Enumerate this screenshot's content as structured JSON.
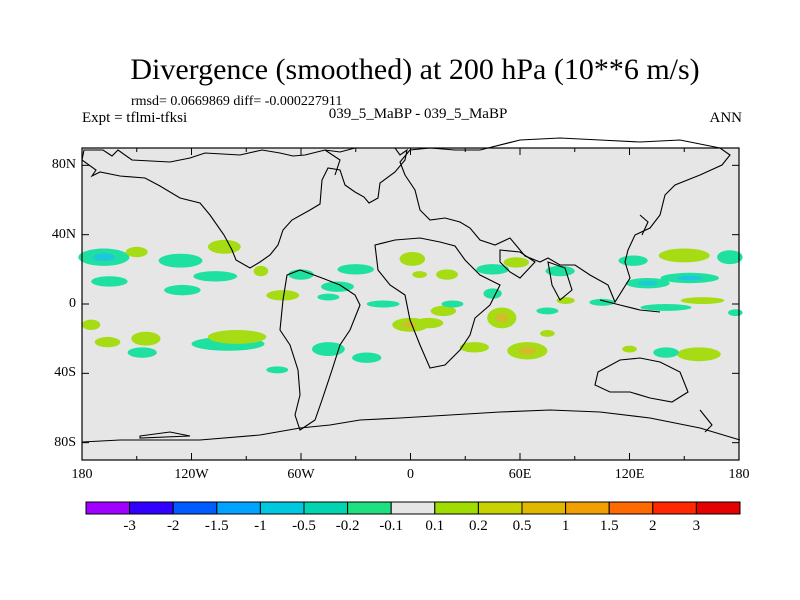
{
  "title": "Divergence (smoothed) at 200 hPa (10**6 m/s)",
  "stats": "rmsd= 0.0669869 diff= -0.000227911",
  "expt": "Expt = tflmi-tfksi",
  "center_label": "039_5_MaBP - 039_5_MaBP",
  "season": "ANN",
  "map": {
    "lat_range": [
      -90,
      90
    ],
    "lon_range": [
      -180,
      180
    ],
    "y_ticks": [
      {
        "label": "80N",
        "lat": 80
      },
      {
        "label": "40N",
        "lat": 40
      },
      {
        "label": "0",
        "lat": 0
      },
      {
        "label": "40S",
        "lat": -40
      },
      {
        "label": "80S",
        "lat": -80
      }
    ],
    "x_ticks": [
      {
        "label": "180",
        "lon": -180
      },
      {
        "label": "120W",
        "lon": -120
      },
      {
        "label": "60W",
        "lon": -60
      },
      {
        "label": "0",
        "lon": 0
      },
      {
        "label": "60E",
        "lon": 60
      },
      {
        "label": "120E",
        "lon": 120
      },
      {
        "label": "180",
        "lon": 180
      }
    ],
    "background_color": "#e6e6e6",
    "positive_color": "#a6dc14",
    "positive_strong_color": "#d2bc2a",
    "negative_color": "#1ee0a0",
    "negative_strong_color": "#1ec8dc",
    "blobs": [
      {
        "sign": "neg",
        "lon": -168,
        "lat": 27,
        "rlon": 14,
        "rlat": 5,
        "strong": true
      },
      {
        "sign": "pos",
        "lon": -150,
        "lat": 30,
        "rlon": 6,
        "rlat": 3
      },
      {
        "sign": "neg",
        "lon": -126,
        "lat": 25,
        "rlon": 12,
        "rlat": 4
      },
      {
        "sign": "pos",
        "lon": -102,
        "lat": 33,
        "rlon": 9,
        "rlat": 4
      },
      {
        "sign": "neg",
        "lon": -107,
        "lat": 16,
        "rlon": 12,
        "rlat": 3
      },
      {
        "sign": "neg",
        "lon": -165,
        "lat": 13,
        "rlon": 10,
        "rlat": 3
      },
      {
        "sign": "neg",
        "lon": -125,
        "lat": 8,
        "rlon": 10,
        "rlat": 3
      },
      {
        "sign": "pos",
        "lon": -82,
        "lat": 19,
        "rlon": 4,
        "rlat": 3
      },
      {
        "sign": "neg",
        "lon": -60,
        "lat": 17,
        "rlon": 7,
        "rlat": 3
      },
      {
        "sign": "neg",
        "lon": -30,
        "lat": 20,
        "rlon": 10,
        "rlat": 3
      },
      {
        "sign": "neg",
        "lon": -40,
        "lat": 10,
        "rlon": 9,
        "rlat": 3
      },
      {
        "sign": "pos",
        "lon": -70,
        "lat": 5,
        "rlon": 9,
        "rlat": 3
      },
      {
        "sign": "neg",
        "lon": -45,
        "lat": 4,
        "rlon": 6,
        "rlat": 2
      },
      {
        "sign": "pos",
        "lon": 1,
        "lat": 26,
        "rlon": 7,
        "rlat": 4
      },
      {
        "sign": "neg",
        "lon": 45,
        "lat": 20,
        "rlon": 9,
        "rlat": 3
      },
      {
        "sign": "pos",
        "lon": 20,
        "lat": 17,
        "rlon": 6,
        "rlat": 3
      },
      {
        "sign": "pos",
        "lon": 5,
        "lat": 17,
        "rlon": 4,
        "rlat": 2
      },
      {
        "sign": "pos",
        "lon": 58,
        "lat": 24,
        "rlon": 7,
        "rlat": 3
      },
      {
        "sign": "neg",
        "lon": 82,
        "lat": 19,
        "rlon": 8,
        "rlat": 3
      },
      {
        "sign": "neg",
        "lon": 130,
        "lat": 12,
        "rlon": 12,
        "rlat": 3,
        "strong": true
      },
      {
        "sign": "neg",
        "lon": 153,
        "lat": 15,
        "rlon": 16,
        "rlat": 3,
        "strong": true
      },
      {
        "sign": "pos",
        "lon": 150,
        "lat": 28,
        "rlon": 14,
        "rlat": 4
      },
      {
        "sign": "neg",
        "lon": 122,
        "lat": 25,
        "rlon": 8,
        "rlat": 3
      },
      {
        "sign": "neg",
        "lon": 175,
        "lat": 27,
        "rlon": 7,
        "rlat": 4
      },
      {
        "sign": "neg",
        "lon": -100,
        "lat": -23,
        "rlon": 20,
        "rlat": 4
      },
      {
        "sign": "pos",
        "lon": -95,
        "lat": -19,
        "rlon": 16,
        "rlat": 4
      },
      {
        "sign": "pos",
        "lon": -145,
        "lat": -20,
        "rlon": 8,
        "rlat": 4
      },
      {
        "sign": "pos",
        "lon": -166,
        "lat": -22,
        "rlon": 7,
        "rlat": 3
      },
      {
        "sign": "neg",
        "lon": -147,
        "lat": -28,
        "rlon": 8,
        "rlat": 3
      },
      {
        "sign": "neg",
        "lon": -45,
        "lat": -26,
        "rlon": 9,
        "rlat": 4
      },
      {
        "sign": "neg",
        "lon": -24,
        "lat": -31,
        "rlon": 8,
        "rlat": 3
      },
      {
        "sign": "pos",
        "lon": -175,
        "lat": -12,
        "rlon": 5,
        "rlat": 3
      },
      {
        "sign": "neg",
        "lon": -15,
        "lat": 0,
        "rlon": 9,
        "rlat": 2
      },
      {
        "sign": "pos",
        "lon": 0,
        "lat": -12,
        "rlon": 10,
        "rlat": 4,
        "strong": true
      },
      {
        "sign": "pos",
        "lon": 10,
        "lat": -11,
        "rlon": 8,
        "rlat": 3
      },
      {
        "sign": "pos",
        "lon": 18,
        "lat": -4,
        "rlon": 7,
        "rlat": 3
      },
      {
        "sign": "neg",
        "lon": 23,
        "lat": 0,
        "rlon": 6,
        "rlat": 2
      },
      {
        "sign": "pos",
        "lon": 50,
        "lat": -8,
        "rlon": 8,
        "rlat": 6,
        "strong": true
      },
      {
        "sign": "neg",
        "lon": 45,
        "lat": 6,
        "rlon": 5,
        "rlat": 3
      },
      {
        "sign": "neg",
        "lon": 75,
        "lat": -4,
        "rlon": 6,
        "rlat": 2
      },
      {
        "sign": "pos",
        "lon": 85,
        "lat": 2,
        "rlon": 5,
        "rlat": 2
      },
      {
        "sign": "neg",
        "lon": 105,
        "lat": 1,
        "rlon": 7,
        "rlat": 2
      },
      {
        "sign": "neg",
        "lon": 140,
        "lat": -2,
        "rlon": 14,
        "rlat": 2
      },
      {
        "sign": "pos",
        "lon": 160,
        "lat": 2,
        "rlon": 12,
        "rlat": 2
      },
      {
        "sign": "pos",
        "lon": 64,
        "lat": -27,
        "rlon": 11,
        "rlat": 5,
        "strong": true
      },
      {
        "sign": "pos",
        "lon": 35,
        "lat": -25,
        "rlon": 8,
        "rlat": 3
      },
      {
        "sign": "pos",
        "lon": 158,
        "lat": -29,
        "rlon": 12,
        "rlat": 4
      },
      {
        "sign": "neg",
        "lon": 140,
        "lat": -28,
        "rlon": 7,
        "rlat": 3
      },
      {
        "sign": "pos",
        "lon": 120,
        "lat": -26,
        "rlon": 4,
        "rlat": 2
      },
      {
        "sign": "pos",
        "lon": 75,
        "lat": -17,
        "rlon": 4,
        "rlat": 2
      },
      {
        "sign": "neg",
        "lon": -73,
        "lat": -38,
        "rlon": 6,
        "rlat": 2
      },
      {
        "sign": "neg",
        "lon": 178,
        "lat": -5,
        "rlon": 4,
        "rlat": 2
      }
    ]
  },
  "colorbar": {
    "colors": [
      "#9f00ff",
      "#3200ff",
      "#005cff",
      "#00a3ff",
      "#00c8e0",
      "#00d4b0",
      "#1ee080",
      "#e6e6e6",
      "#a0dc00",
      "#c8d200",
      "#e0b800",
      "#f0a000",
      "#ff6a00",
      "#ff2800",
      "#e60000"
    ],
    "labels": [
      "-3",
      "-2",
      "-1.5",
      "-1",
      "-0.5",
      "-0.2",
      "-0.1",
      "0.1",
      "0.2",
      "0.5",
      "1",
      "1.5",
      "2",
      "3"
    ]
  }
}
